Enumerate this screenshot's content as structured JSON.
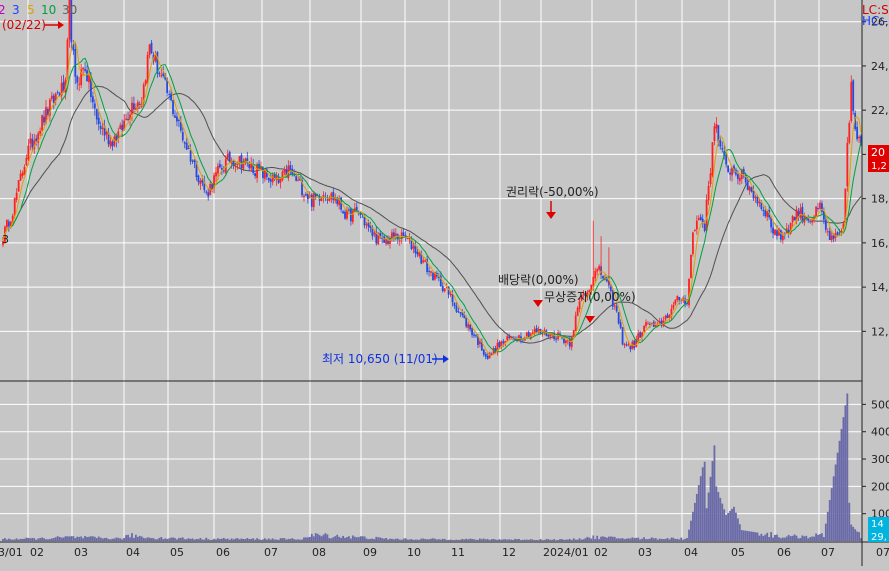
{
  "legend": {
    "items": [
      {
        "label": "2",
        "color": "#c000c0"
      },
      {
        "label": "3",
        "color": "#2040ff"
      },
      {
        "label": "5",
        "color": "#e0a000"
      },
      {
        "label": "10",
        "color": "#00a040"
      },
      {
        "label": "30",
        "color": "#606060"
      }
    ],
    "top_right_1": "LC:S",
    "top_right_2": "HC:-"
  },
  "annotations": {
    "peak_date": "(02/22)",
    "rights": "권리락(-50,00%)",
    "dividend": "배당락(0,00%)",
    "bonus": "무상증자(0,00%)",
    "low": "최저 10,650 (11/01)",
    "partial_left": "3"
  },
  "price_tags": {
    "last": "20",
    "change": "1,2"
  },
  "volume_tags": {
    "last": "14",
    "prev": "29,"
  },
  "colors": {
    "up": "#ff2020",
    "down": "#2848e0",
    "ma5": "#e0a000",
    "ma10": "#00a040",
    "ma30": "#505050",
    "volume": "#6a6aa8",
    "grid": "#ffffff",
    "background": "#c6c6c6"
  },
  "chart_data": [
    {
      "type": "candlestick",
      "price_axis": {
        "ticks": [
          "26,0",
          "24,0",
          "22,0",
          "20,0",
          "18,0",
          "16,0",
          "14,0",
          "12,0"
        ],
        "tick_values": [
          26000,
          24000,
          22000,
          20000,
          18000,
          16000,
          14000,
          12000
        ],
        "ylim": [
          9800,
          26800
        ]
      },
      "x_axis": {
        "ticks": [
          "3/01",
          "02",
          "03",
          "04",
          "05",
          "06",
          "07",
          "08",
          "09",
          "10",
          "11",
          "12",
          "2024/01",
          "02",
          "03",
          "04",
          "05",
          "06",
          "07",
          "07/"
        ]
      },
      "price_keypoints": [
        [
          0,
          16300
        ],
        [
          5,
          17500
        ],
        [
          12,
          20000
        ],
        [
          20,
          21500
        ],
        [
          28,
          22800
        ],
        [
          32,
          23000
        ],
        [
          34,
          26600
        ],
        [
          37,
          23200
        ],
        [
          42,
          24000
        ],
        [
          48,
          21500
        ],
        [
          55,
          20600
        ],
        [
          60,
          21000
        ],
        [
          66,
          22300
        ],
        [
          71,
          22500
        ],
        [
          75,
          24900
        ],
        [
          80,
          23700
        ],
        [
          86,
          22300
        ],
        [
          92,
          20800
        ],
        [
          98,
          19500
        ],
        [
          104,
          18200
        ],
        [
          110,
          19200
        ],
        [
          116,
          19800
        ],
        [
          122,
          19700
        ],
        [
          128,
          19400
        ],
        [
          135,
          19000
        ],
        [
          141,
          18700
        ],
        [
          146,
          19300
        ],
        [
          152,
          18600
        ],
        [
          158,
          17900
        ],
        [
          164,
          18300
        ],
        [
          170,
          18000
        ],
        [
          176,
          17200
        ],
        [
          182,
          17400
        ],
        [
          188,
          16500
        ],
        [
          194,
          16000
        ],
        [
          200,
          16300
        ],
        [
          206,
          16200
        ],
        [
          212,
          15600
        ],
        [
          218,
          14700
        ],
        [
          224,
          14200
        ],
        [
          230,
          13400
        ],
        [
          236,
          12500
        ],
        [
          242,
          11700
        ],
        [
          248,
          10800
        ],
        [
          254,
          11400
        ],
        [
          260,
          11700
        ],
        [
          266,
          11800
        ],
        [
          272,
          12000
        ],
        [
          278,
          11900
        ],
        [
          284,
          11800
        ],
        [
          290,
          11500
        ],
        [
          293,
          12600
        ],
        [
          296,
          13600
        ],
        [
          299,
          13800
        ],
        [
          302,
          14600
        ],
        [
          305,
          14700
        ],
        [
          308,
          14400
        ],
        [
          311,
          13600
        ],
        [
          314,
          12800
        ],
        [
          317,
          11600
        ],
        [
          320,
          11300
        ],
        [
          323,
          11400
        ],
        [
          326,
          11900
        ],
        [
          330,
          12400
        ],
        [
          334,
          12100
        ],
        [
          338,
          12500
        ],
        [
          342,
          13000
        ],
        [
          346,
          13500
        ],
        [
          350,
          13400
        ],
        [
          353,
          16400
        ],
        [
          356,
          17200
        ],
        [
          359,
          16800
        ],
        [
          362,
          19400
        ],
        [
          364,
          21600
        ],
        [
          367,
          20200
        ],
        [
          370,
          19400
        ],
        [
          374,
          19300
        ],
        [
          378,
          19000
        ],
        [
          382,
          18500
        ],
        [
          386,
          17900
        ],
        [
          390,
          17500
        ],
        [
          394,
          16600
        ],
        [
          398,
          16300
        ],
        [
          402,
          16700
        ],
        [
          406,
          17400
        ],
        [
          410,
          17200
        ],
        [
          414,
          17100
        ],
        [
          418,
          17600
        ],
        [
          421,
          16600
        ],
        [
          424,
          16100
        ],
        [
          427,
          16200
        ],
        [
          430,
          16600
        ],
        [
          432,
          20500
        ],
        [
          434,
          23000
        ],
        [
          436,
          21000
        ],
        [
          439,
          20300
        ]
      ]
    },
    {
      "type": "bar",
      "series": [
        {
          "values_note": "trading volume per day"
        }
      ],
      "y_axis": {
        "ticks": [
          "500",
          "400",
          "300",
          "200",
          "100"
        ],
        "tick_values": [
          500,
          400,
          300,
          200,
          100
        ],
        "ylim": [
          0,
          560
        ]
      },
      "volume_keypoints": [
        [
          0,
          7
        ],
        [
          20,
          9
        ],
        [
          34,
          14
        ],
        [
          60,
          9
        ],
        [
          66,
          20
        ],
        [
          75,
          12
        ],
        [
          100,
          8
        ],
        [
          152,
          7
        ],
        [
          160,
          22
        ],
        [
          200,
          7
        ],
        [
          250,
          6
        ],
        [
          290,
          5
        ],
        [
          302,
          14
        ],
        [
          317,
          10
        ],
        [
          350,
          9
        ],
        [
          358,
          270
        ],
        [
          359,
          290
        ],
        [
          360,
          120
        ],
        [
          364,
          350
        ],
        [
          365,
          200
        ],
        [
          370,
          95
        ],
        [
          374,
          125
        ],
        [
          378,
          40
        ],
        [
          400,
          15
        ],
        [
          420,
          20
        ],
        [
          432,
          540
        ],
        [
          433,
          140
        ],
        [
          434,
          60
        ],
        [
          439,
          18
        ]
      ]
    }
  ]
}
